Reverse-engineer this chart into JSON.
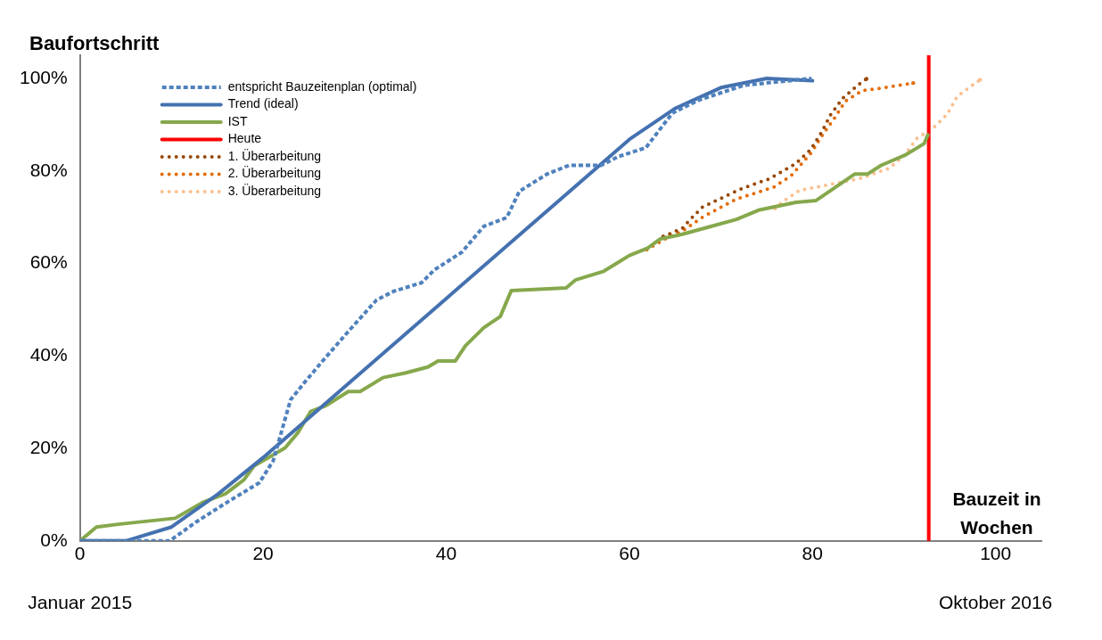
{
  "chart_data": {
    "type": "line",
    "title": "Baufortschritt",
    "xlabel": "Bauzeit in Wochen",
    "annotations": [
      "Januar 2015",
      "Oktober 2016"
    ],
    "xlim": [
      0,
      105
    ],
    "xticks": [
      0,
      20,
      40,
      60,
      80,
      100
    ],
    "ylim": [
      0,
      105
    ],
    "yticks": [
      {
        "value": 0,
        "label": "0%"
      },
      {
        "value": 20,
        "label": "20%"
      },
      {
        "value": 40,
        "label": "40%"
      },
      {
        "value": 60,
        "label": "60%"
      },
      {
        "value": 80,
        "label": "80%"
      },
      {
        "value": 100,
        "label": "100%"
      }
    ],
    "grid": false,
    "legend": "top left",
    "marker": "none",
    "series": [
      {
        "name": "entspricht Bauzeitenplan (optimal)",
        "color": "#4f81bd",
        "line_style": "dashed",
        "x": [
          0,
          9.8,
          12.7,
          15.7,
          19.6,
          21.1,
          23,
          24.5,
          26.5,
          29.4,
          32.4,
          34.3,
          37.3,
          38.7,
          41.7,
          44.1,
          46.6,
          48,
          51,
          53.4,
          56.9,
          58.8,
          61.8,
          64.7,
          67.6,
          72.5,
          79.9
        ],
        "values": [
          0,
          0,
          4.1,
          7.9,
          12.6,
          17.3,
          30.5,
          34.2,
          38.9,
          45.5,
          52.1,
          54,
          55.8,
          58.6,
          62.4,
          68,
          69.9,
          75.6,
          79.3,
          81.2,
          81.2,
          83.1,
          85,
          92.5,
          95.3,
          98.5,
          100
        ]
      },
      {
        "name": "Trend (ideal)",
        "color": "#4471b0",
        "line_style": "solid",
        "x": [
          0,
          5,
          10,
          15,
          20,
          40,
          60,
          65,
          70,
          75,
          80
        ],
        "values": [
          0,
          0,
          3,
          10,
          18,
          52.4,
          86.8,
          93.5,
          98,
          100,
          99.5
        ]
      },
      {
        "name": "IST",
        "color": "#86a84c",
        "line_style": "solid",
        "x": [
          0,
          1.8,
          4.2,
          10.4,
          13.4,
          15.9,
          17.9,
          19,
          22.4,
          23.8,
          25.2,
          26.9,
          29.3,
          30.6,
          33.1,
          35.5,
          38,
          39.1,
          41,
          42.1,
          44.1,
          45.9,
          47.1,
          53.1,
          54.1,
          57.2,
          58.6,
          60,
          62,
          63.4,
          65.8,
          68.2,
          71.7,
          74.1,
          78.2,
          80.4,
          84.6,
          86,
          87.5,
          90.2,
          92.2,
          92.6
        ],
        "values": [
          0,
          3,
          3.6,
          4.9,
          8.3,
          10.2,
          13.2,
          16.2,
          20.1,
          23.4,
          28,
          29.3,
          32.3,
          32.3,
          35.3,
          36.3,
          37.6,
          38.9,
          38.9,
          42.2,
          46.1,
          48.5,
          54.1,
          54.7,
          56.4,
          58.3,
          60,
          61.7,
          63.3,
          65.3,
          66.3,
          67.6,
          69.5,
          71.5,
          73.2,
          73.6,
          79.3,
          79.3,
          81.2,
          83.5,
          85.9,
          87.8
        ]
      },
      {
        "name": "Heute",
        "color": "#ff0000",
        "line_style": "solid",
        "x": [
          92.7,
          92.7
        ],
        "values": [
          0,
          105
        ]
      },
      {
        "name": "1. Überarbeitung",
        "color": "#984807",
        "line_style": "dotted",
        "x": [
          63.7,
          65.8,
          66.5,
          68,
          72.2,
          75.3,
          78.2,
          79.8,
          81,
          82,
          83.3,
          85,
          85.9
        ],
        "values": [
          65.8,
          67.6,
          69.2,
          72.2,
          76.1,
          78.3,
          81.6,
          84.6,
          88.4,
          92.2,
          95.7,
          98.6,
          99.9
        ]
      },
      {
        "name": "2. Überarbeitung",
        "color": "#e46c0a",
        "line_style": "dotted",
        "x": [
          61.9,
          63.9,
          65.8,
          68,
          71.7,
          75.8,
          77.7,
          79.9,
          81.1,
          82.4,
          83.6,
          85.5,
          87.5,
          91
        ],
        "values": [
          63,
          65.3,
          67,
          70,
          73.9,
          76.5,
          79,
          84,
          87.8,
          91.4,
          95.1,
          97.4,
          97.9,
          99
        ]
      },
      {
        "name": "3. Überarbeitung",
        "color": "#fac090",
        "line_style": "dotted",
        "x": [
          75.9,
          76.8,
          78.6,
          82,
          85.3,
          88.4,
          90.1,
          91.4,
          93.2,
          94.7,
          95.8,
          98.3
        ],
        "values": [
          71.9,
          73.4,
          75.8,
          77.1,
          78.4,
          80.6,
          83.5,
          87,
          89.3,
          92.2,
          96.1,
          99.7
        ]
      }
    ]
  }
}
